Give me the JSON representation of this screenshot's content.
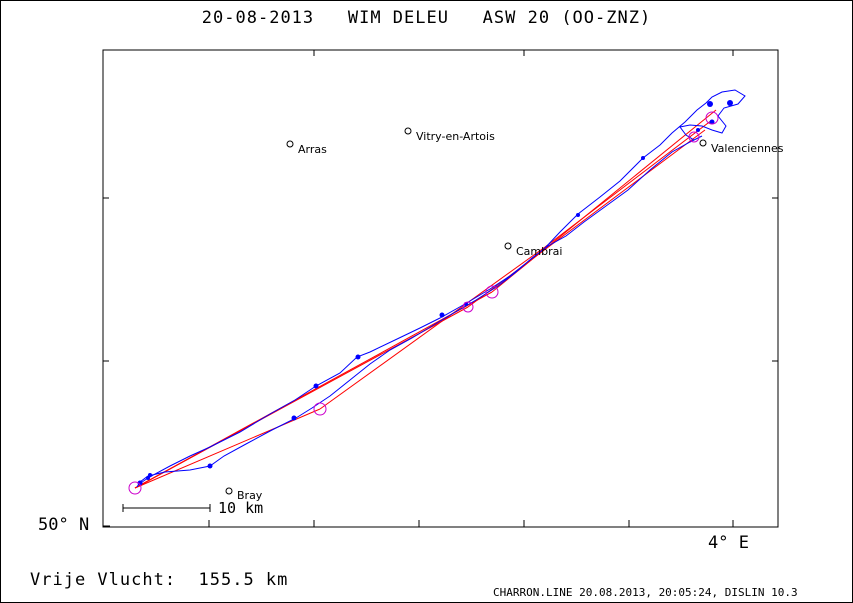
{
  "title": "20-08-2013   WIM DELEU   ASW 20 (OO-ZNZ)",
  "footer": {
    "distance_text": "Vrije Vlucht:  155.5 km",
    "credit": "CHARRON.LINE 20.08.2013, 20:05:24, DISLIN 10.3"
  },
  "axes": {
    "lat_label": "50° N",
    "lon_label": "4° E"
  },
  "scale": {
    "label": "10 km"
  },
  "towns": [
    {
      "name": "Arras"
    },
    {
      "name": "Vitry-en-Artois"
    },
    {
      "name": "Valenciennes"
    },
    {
      "name": "Cambrai"
    },
    {
      "name": "Bray"
    }
  ],
  "colors": {
    "track": "#0000ff",
    "task_line": "#ff0000",
    "turnpoint": "#cc00cc",
    "frame": "#000000"
  }
}
